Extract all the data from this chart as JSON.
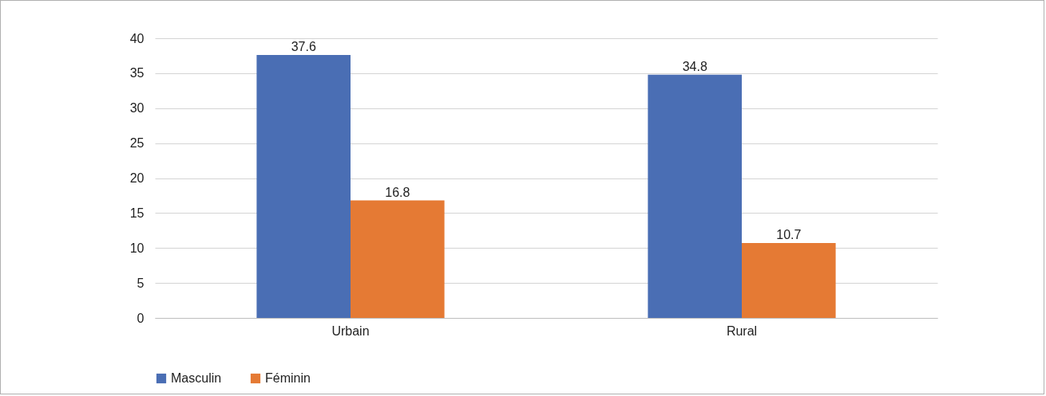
{
  "chart_data": {
    "type": "bar",
    "categories": [
      "Urbain",
      "Rural"
    ],
    "series": [
      {
        "name": "Masculin",
        "color": "#4a6eb4",
        "values": [
          37.6,
          34.8
        ]
      },
      {
        "name": "Féminin",
        "color": "#e57a34",
        "values": [
          16.8,
          10.7
        ]
      }
    ],
    "ylim": [
      0,
      40
    ],
    "yticks": [
      0,
      5,
      10,
      15,
      20,
      25,
      30,
      35,
      40
    ],
    "grid": "y",
    "legend": "bottom",
    "data_labels": true
  }
}
